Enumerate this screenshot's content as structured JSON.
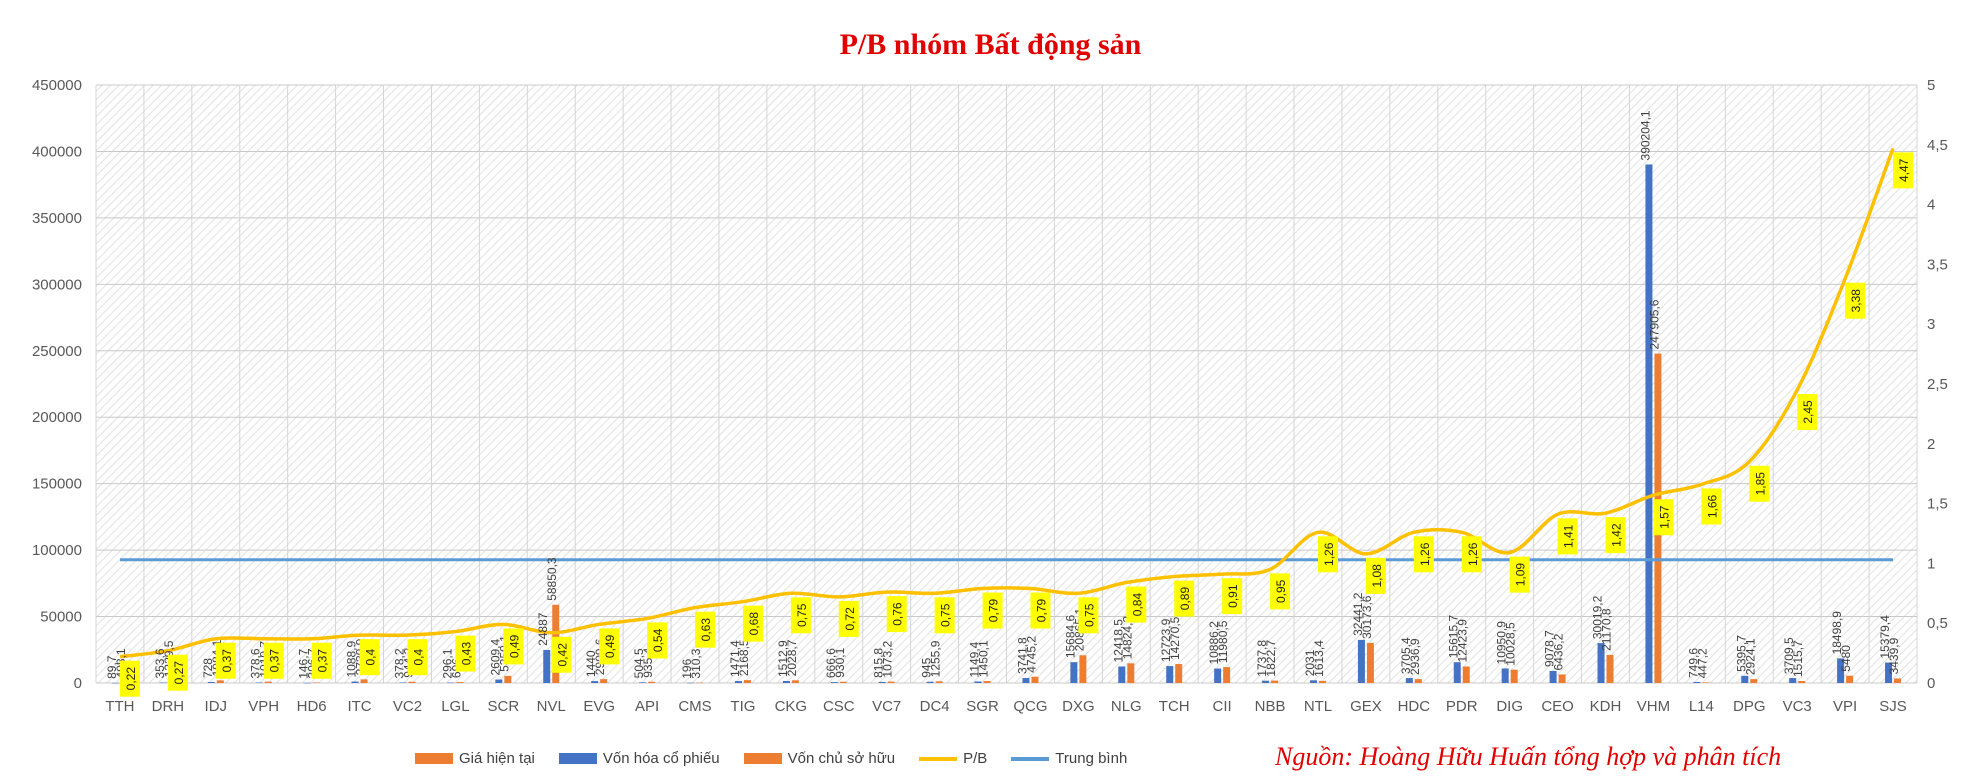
{
  "title": "P/B nhóm Bất động sản",
  "source": "Nguồn: Hoàng Hữu Huấn tổng hợp và phân tích",
  "legend": [
    {
      "name": "Giá hiện tại",
      "color": "#ED7D31",
      "kind": "bar"
    },
    {
      "name": "Vốn hóa cổ phiếu",
      "color": "#4472C4",
      "kind": "bar"
    },
    {
      "name": "Vốn chủ sở hữu",
      "color": "#ED7D31",
      "kind": "bar"
    },
    {
      "name": "P/B",
      "color": "#FFC000",
      "kind": "line"
    },
    {
      "name": "Trung bình",
      "color": "#5B9BD5",
      "kind": "line"
    }
  ],
  "chart_data": {
    "type": "bar",
    "categories": [
      "TTH",
      "DRH",
      "IDJ",
      "VPH",
      "HD6",
      "ITC",
      "VC2",
      "LGL",
      "SCR",
      "NVL",
      "EVG",
      "API",
      "CMS",
      "TIG",
      "CKG",
      "CSC",
      "VC7",
      "DC4",
      "SGR",
      "QCG",
      "DXG",
      "NLG",
      "TCH",
      "CII",
      "NBB",
      "NTL",
      "GEX",
      "HDC",
      "PDR",
      "DIG",
      "CEO",
      "KDH",
      "VHM",
      "L14",
      "DPG",
      "VC3",
      "VPI",
      "SJS"
    ],
    "series": [
      {
        "name": "Vốn hóa cổ phiếu",
        "axis": "left",
        "values": [
          89.7,
          353.6,
          728,
          378.6,
          146.7,
          1088.9,
          378.2,
          296.1,
          2609.4,
          24887,
          1440,
          504.5,
          196,
          1471.4,
          1512.9,
          666.6,
          815.8,
          945,
          1149.4,
          3741.8,
          15684.6,
          12418.5,
          12723.9,
          10886.2,
          1737.8,
          2031,
          32441.2,
          3705.4,
          15615.7,
          10950.9,
          9078.7,
          30019.2,
          390204.1,
          749.6,
          5395.7,
          3709.5,
          18498.9,
          15379.4
        ],
        "labels": [
          "89,7",
          "353,6",
          "728",
          "378,6",
          "146,7",
          "1088,9",
          "378,2",
          "296,1",
          "2609,4",
          "24887",
          "1440",
          "504,5",
          "196",
          "1471,4",
          "1512,9",
          "666,6",
          "815,8",
          "945",
          "1149,4",
          "3741,8",
          "15684,6",
          "12418,5",
          "12723,9",
          "10886,2",
          "1737,8",
          "2031",
          "32441,2",
          "3705,4",
          "15615,7",
          "10950,9",
          "9078,7",
          "30019,2",
          "390204,1",
          "749,6",
          "5395,7",
          "3709,5",
          "18498,9",
          "15379,4"
        ]
      },
      {
        "name": "Vốn chủ sở hữu",
        "axis": "left",
        "values": [
          408.1,
          1329.5,
          1984.1,
          1019.7,
          396.7,
          2730.9,
          944.3,
          696,
          5359.1,
          58850.3,
          2909.6,
          935.4,
          310.3,
          2168.5,
          2028.7,
          930.1,
          1073.2,
          1255.9,
          1450.1,
          4745.2,
          20865.1,
          14824.2,
          14270.5,
          11980.5,
          1822.7,
          1613.4,
          30173.6,
          2936.9,
          12423.9,
          10028.5,
          6436.2,
          21170.8,
          247905.6,
          447.2,
          2924.1,
          1515.7,
          5480,
          3439.9
        ],
        "labels": [
          "408,1",
          "1329,5",
          "1984,1",
          "1019,7",
          "396,7",
          "2730,9",
          "944,3",
          "696",
          "5359,1",
          "58850,3",
          "2909,6",
          "935,4",
          "310,3",
          "2168,5",
          "2028,7",
          "930,1",
          "1073,2",
          "1255,9",
          "1450,1",
          "4745,2",
          "20865,1",
          "14824,2",
          "14270,5",
          "11980,5",
          "1822,7",
          "1613,4",
          "30173,6",
          "2936,9",
          "12423,9",
          "10028,5",
          "6436,2",
          "21170,8",
          "247905,6",
          "447,2",
          "2924,1",
          "1515,7",
          "5480",
          "3439,9"
        ]
      },
      {
        "name": "P/B",
        "axis": "right",
        "values": [
          0.22,
          0.27,
          0.37,
          0.37,
          0.37,
          0.4,
          0.4,
          0.43,
          0.49,
          0.42,
          0.49,
          0.54,
          0.63,
          0.68,
          0.75,
          0.72,
          0.76,
          0.75,
          0.79,
          0.79,
          0.75,
          0.84,
          0.89,
          0.91,
          0.95,
          1.26,
          1.08,
          1.26,
          1.26,
          1.09,
          1.41,
          1.42,
          1.57,
          1.66,
          1.85,
          2.45,
          3.38,
          4.47
        ],
        "labels": [
          "0,22",
          "0,27",
          "0,37",
          "0,37",
          "0,37",
          "0,4",
          "0,4",
          "0,43",
          "0,49",
          "0,42",
          "0,49",
          "0,54",
          "0,63",
          "0,68",
          "0,75",
          "0,72",
          "0,76",
          "0,75",
          "0,79",
          "0,79",
          "0,75",
          "0,84",
          "0,89",
          "0,91",
          "0,95",
          "1,26",
          "1,08",
          "1,26",
          "1,26",
          "1,09",
          "1,41",
          "1,42",
          "1,57",
          "1,66",
          "1,85",
          "2,45",
          "3,38",
          "4,47"
        ]
      },
      {
        "name": "Trung bình",
        "axis": "right",
        "value": 1.03
      }
    ],
    "left_axis": {
      "min": 0,
      "max": 450000,
      "ticks": [
        "0",
        "50000",
        "100000",
        "150000",
        "200000",
        "250000",
        "300000",
        "350000",
        "400000",
        "450000"
      ]
    },
    "right_axis": {
      "min": 0,
      "max": 5,
      "ticks": [
        "0",
        "0,5",
        "1",
        "1,5",
        "2",
        "2,5",
        "3",
        "3,5",
        "4",
        "4,5",
        "5"
      ]
    },
    "grid": true,
    "legend_position": "bottom"
  }
}
